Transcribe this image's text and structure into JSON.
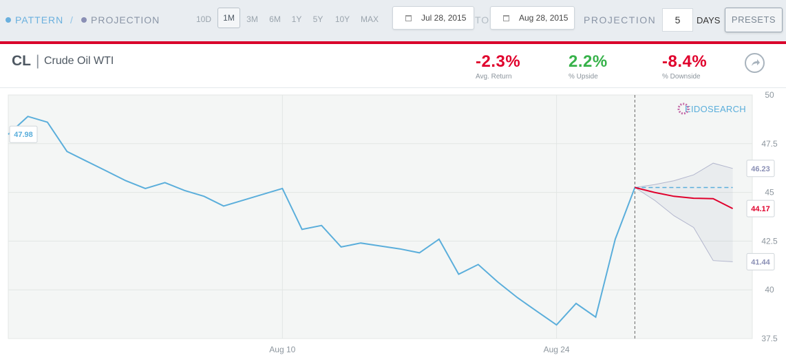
{
  "toolbar": {
    "legend_pattern": "PATTERN",
    "legend_separator": "/",
    "legend_projection": "PROJECTION",
    "ranges": [
      "10D",
      "1M",
      "3M",
      "6M",
      "1Y",
      "5Y",
      "10Y",
      "MAX"
    ],
    "active_range": "1M",
    "date_from": "Jul 28, 2015",
    "to_label": "TO",
    "date_to": "Aug 28, 2015",
    "projection_label": "PROJECTION",
    "projection_days": "5",
    "days_label": "DAYS",
    "presets_label": "PRESETS",
    "pattern_color": "#6ab0de",
    "projection_color": "#8a8fb5"
  },
  "header": {
    "ticker": "CL",
    "separator": "|",
    "company": "Crude Oil WTI",
    "stats": [
      {
        "value": "-2.3%",
        "label": "Avg. Return",
        "color": "#e0002c"
      },
      {
        "value": "2.2%",
        "label": "% Upside",
        "color": "#37b24a"
      },
      {
        "value": "-8.4%",
        "label": "% Downside",
        "color": "#e0002c"
      }
    ],
    "share_icon": "share-arrow-icon"
  },
  "chart_data": {
    "type": "line",
    "title": "",
    "xlabel": "",
    "ylabel": "",
    "ylim": [
      37.5,
      50
    ],
    "y_ticks": [
      "37.5",
      "40",
      "42.5",
      "45",
      "47.5",
      "50"
    ],
    "x_ticks": [
      {
        "date": "2015-08-10",
        "label": "Aug 10"
      },
      {
        "date": "2015-08-24",
        "label": "Aug 24"
      }
    ],
    "grid": true,
    "watermark": "EIDOSEARCH",
    "series": [
      {
        "role": "pattern",
        "color": "#5aaedb",
        "points": [
          [
            "2015-07-27",
            47.98
          ],
          [
            "2015-07-28",
            48.9
          ],
          [
            "2015-07-29",
            48.6
          ],
          [
            "2015-07-30",
            47.1
          ],
          [
            "2015-07-31",
            46.6
          ],
          [
            "2015-08-01",
            46.1
          ],
          [
            "2015-08-02",
            45.6
          ],
          [
            "2015-08-03",
            45.2
          ],
          [
            "2015-08-04",
            45.5
          ],
          [
            "2015-08-05",
            45.1
          ],
          [
            "2015-08-06",
            44.8
          ],
          [
            "2015-08-07",
            44.3
          ],
          [
            "2015-08-08",
            44.6
          ],
          [
            "2015-08-09",
            44.9
          ],
          [
            "2015-08-10",
            45.2
          ],
          [
            "2015-08-11",
            43.1
          ],
          [
            "2015-08-12",
            43.3
          ],
          [
            "2015-08-13",
            42.2
          ],
          [
            "2015-08-14",
            42.4
          ],
          [
            "2015-08-15",
            42.25
          ],
          [
            "2015-08-16",
            42.1
          ],
          [
            "2015-08-17",
            41.9
          ],
          [
            "2015-08-18",
            42.6
          ],
          [
            "2015-08-19",
            40.8
          ],
          [
            "2015-08-20",
            41.3
          ],
          [
            "2015-08-21",
            40.4
          ],
          [
            "2015-08-22",
            39.6
          ],
          [
            "2015-08-23",
            38.9
          ],
          [
            "2015-08-24",
            38.2
          ],
          [
            "2015-08-25",
            39.3
          ],
          [
            "2015-08-26",
            38.6
          ],
          [
            "2015-08-27",
            42.6
          ],
          [
            "2015-08-28",
            45.25
          ]
        ]
      },
      {
        "role": "projection",
        "color": "#e0002c",
        "points": [
          [
            "2015-08-28",
            45.25
          ],
          [
            "2015-08-29",
            45.0
          ],
          [
            "2015-08-30",
            44.8
          ],
          [
            "2015-08-31",
            44.7
          ],
          [
            "2015-09-01",
            44.68
          ],
          [
            "2015-09-02",
            44.17
          ]
        ]
      },
      {
        "role": "baseline",
        "color": "#5aaedb",
        "points": [
          [
            "2015-08-28",
            45.25
          ],
          [
            "2015-09-02",
            45.25
          ]
        ]
      },
      {
        "role": "band_upper",
        "color": "#8a8fb5",
        "points": [
          [
            "2015-08-28",
            45.25
          ],
          [
            "2015-08-29",
            45.4
          ],
          [
            "2015-08-30",
            45.6
          ],
          [
            "2015-08-31",
            45.9
          ],
          [
            "2015-09-01",
            46.5
          ],
          [
            "2015-09-02",
            46.23
          ]
        ]
      },
      {
        "role": "band_lower",
        "color": "#8a8fb5",
        "points": [
          [
            "2015-08-28",
            45.25
          ],
          [
            "2015-08-29",
            44.6
          ],
          [
            "2015-08-30",
            43.8
          ],
          [
            "2015-08-31",
            43.2
          ],
          [
            "2015-09-01",
            41.5
          ],
          [
            "2015-09-02",
            41.44
          ]
        ]
      }
    ],
    "value_labels": [
      {
        "text": "47.98",
        "date": "2015-07-27",
        "value": 47.98,
        "color": "#5aaedb"
      },
      {
        "text": "46.23",
        "date": "2015-09-02",
        "value": 46.23,
        "color": "#8a8fb5"
      },
      {
        "text": "44.17",
        "date": "2015-09-02",
        "value": 44.17,
        "color": "#e0002c"
      },
      {
        "text": "41.44",
        "date": "2015-09-02",
        "value": 41.44,
        "color": "#8a8fb5"
      }
    ],
    "projection_start": "2015-08-28"
  }
}
